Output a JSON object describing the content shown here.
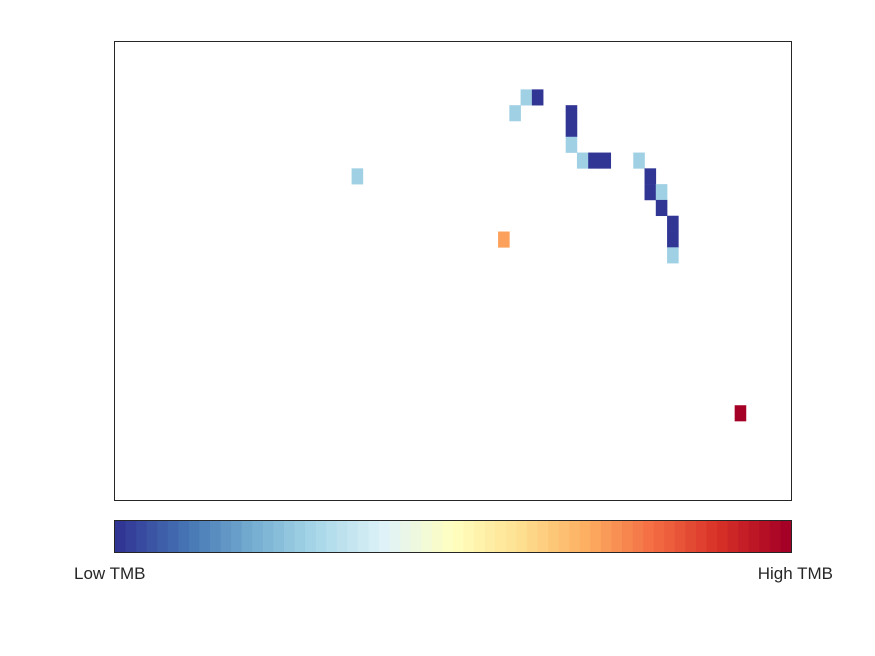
{
  "chart_data": {
    "type": "heatmap",
    "title": "",
    "xlabel": "",
    "ylabel": "",
    "grid": false,
    "n_cols": 60,
    "n_rows": 29,
    "colorbar": {
      "low_label": "Low TMB",
      "high_label": "High TMB",
      "steps": 64,
      "colormap": [
        "#313695",
        "#4575b4",
        "#74add1",
        "#abd9e9",
        "#e0f3f8",
        "#ffffbf",
        "#fee090",
        "#fdae61",
        "#f46d43",
        "#d73027",
        "#a50026"
      ]
    },
    "cells": [
      {
        "col": 36,
        "row": 3,
        "level": 0.28
      },
      {
        "col": 37,
        "row": 3,
        "level": 0.0
      },
      {
        "col": 35,
        "row": 4,
        "level": 0.28
      },
      {
        "col": 40,
        "row": 4,
        "level": 0.0
      },
      {
        "col": 40,
        "row": 5,
        "level": 0.0
      },
      {
        "col": 40,
        "row": 6,
        "level": 0.28
      },
      {
        "col": 41,
        "row": 7,
        "level": 0.28
      },
      {
        "col": 42,
        "row": 7,
        "level": 0.0
      },
      {
        "col": 43,
        "row": 7,
        "level": 0.0
      },
      {
        "col": 46,
        "row": 7,
        "level": 0.28
      },
      {
        "col": 21,
        "row": 8,
        "level": 0.28
      },
      {
        "col": 47,
        "row": 8,
        "level": 0.0
      },
      {
        "col": 47,
        "row": 9,
        "level": 0.0
      },
      {
        "col": 48,
        "row": 9,
        "level": 0.28
      },
      {
        "col": 48,
        "row": 10,
        "level": 0.0
      },
      {
        "col": 49,
        "row": 11,
        "level": 0.0
      },
      {
        "col": 34,
        "row": 12,
        "level": 0.72
      },
      {
        "col": 49,
        "row": 12,
        "level": 0.0
      },
      {
        "col": 49,
        "row": 13,
        "level": 0.28
      },
      {
        "col": 55,
        "row": 23,
        "level": 1.0
      }
    ]
  }
}
